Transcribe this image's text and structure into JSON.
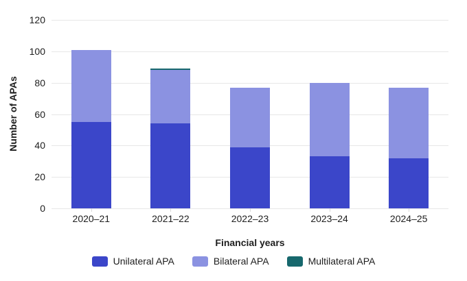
{
  "chart_data": {
    "type": "bar",
    "stacked": true,
    "xlabel": "Financial years",
    "ylabel": "Number of APAs",
    "categories": [
      "2020–21",
      "2021–22",
      "2022–23",
      "2023–24",
      "2024–25"
    ],
    "series": [
      {
        "name": "Unilateral APA",
        "color": "#3b46c9",
        "values": [
          55,
          54,
          39,
          33,
          32
        ]
      },
      {
        "name": "Bilateral APA",
        "color": "#8b92e1",
        "values": [
          46,
          34,
          38,
          47,
          45
        ]
      },
      {
        "name": "Multilateral APA",
        "color": "#17686d",
        "values": [
          0,
          1,
          0,
          0,
          0
        ]
      }
    ],
    "yticks": [
      0,
      20,
      40,
      60,
      80,
      100,
      120
    ],
    "ylim": [
      0,
      120
    ],
    "grid": true,
    "legend_position": "bottom",
    "gridline_color": "#e7e7e7",
    "text_color": "#1d1d1d",
    "background_color": "#ffffff"
  }
}
